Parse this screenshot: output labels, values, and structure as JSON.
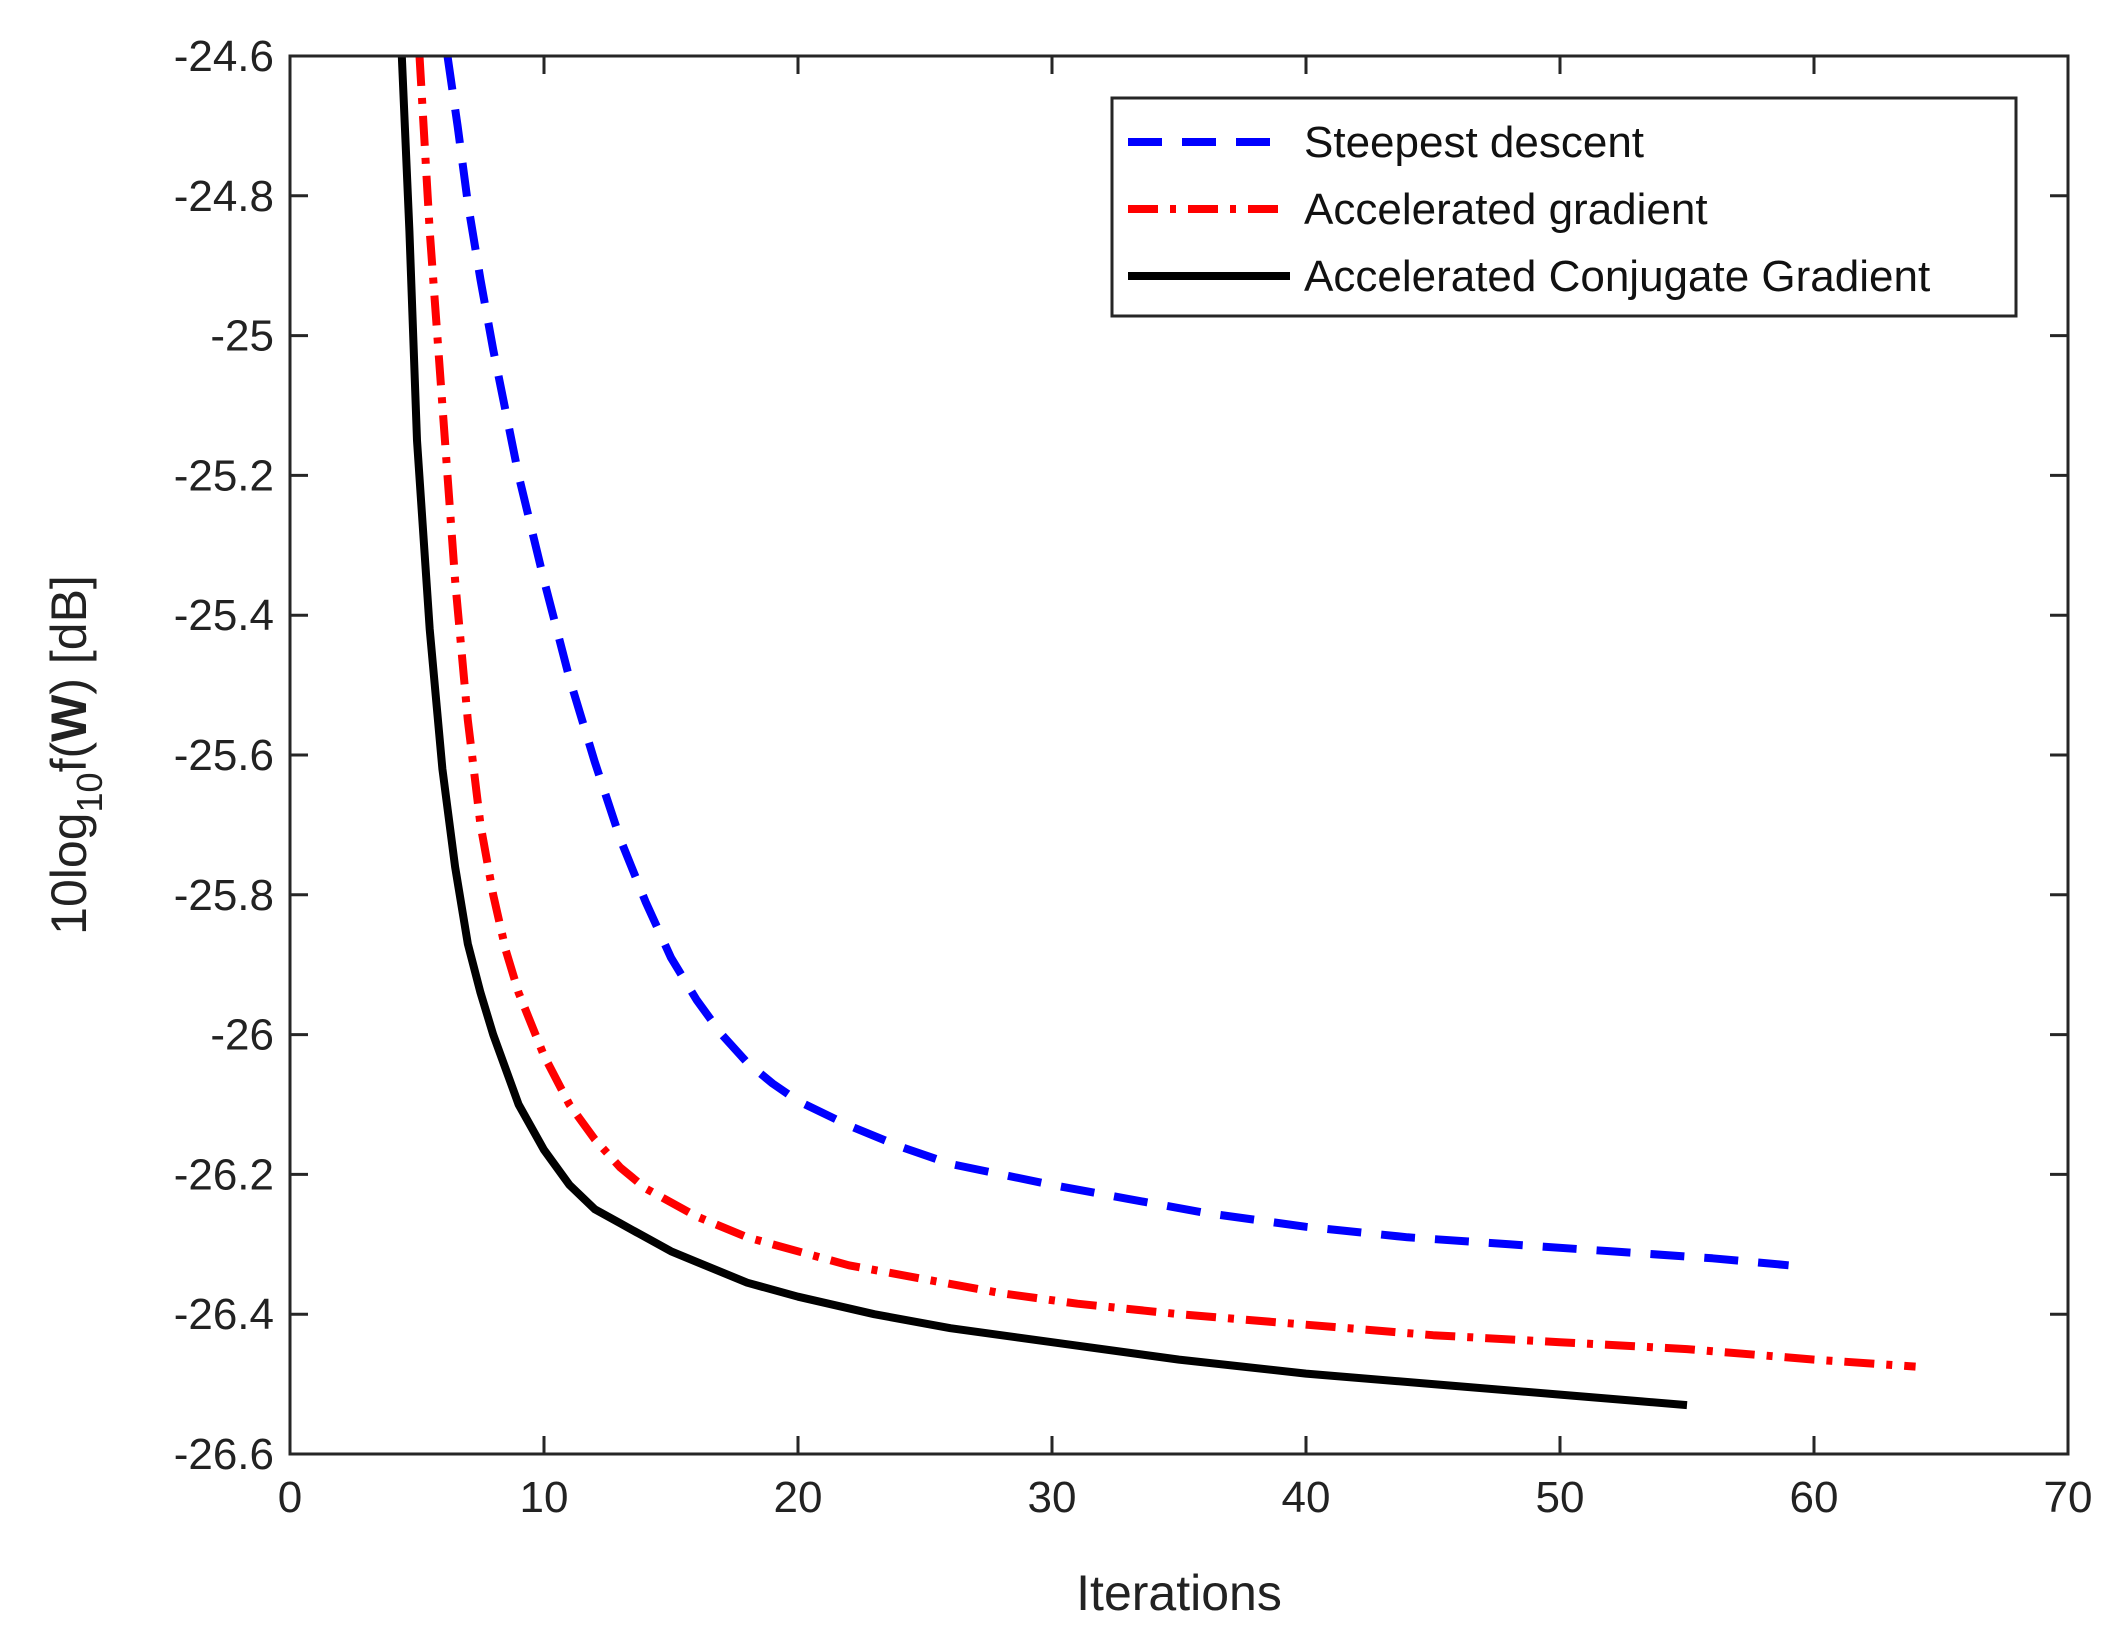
{
  "chart_data": {
    "type": "line",
    "xlabel": "Iterations",
    "ylabel": {
      "prefix": "10log",
      "subscript": "10",
      "func": "f(",
      "bold": "W",
      "suffix": ") [dB]"
    },
    "xlim": [
      0,
      70
    ],
    "ylim": [
      -26.6,
      -24.6
    ],
    "xticks": [
      0,
      10,
      20,
      30,
      40,
      50,
      60,
      70
    ],
    "xtick_labels": [
      "0",
      "10",
      "20",
      "30",
      "40",
      "50",
      "60",
      "70"
    ],
    "yticks": [
      -24.6,
      -24.8,
      -25,
      -25.2,
      -25.4,
      -25.6,
      -25.8,
      -26,
      -26.2,
      -26.4,
      -26.6
    ],
    "ytick_labels": [
      "-24.6",
      "-24.8",
      "-25",
      "-25.2",
      "-25.4",
      "-25.6",
      "-25.8",
      "-26",
      "-26.2",
      "-26.4",
      "-26.6"
    ],
    "grid": false,
    "legend_position": "top-right",
    "series": [
      {
        "name": "Steepest descent",
        "color": "#0000ff",
        "style": "dashed",
        "x": [
          6.2,
          6.6,
          7,
          7.5,
          8,
          8.5,
          9,
          10,
          11,
          12,
          13,
          14,
          15,
          16,
          17,
          18,
          19,
          20,
          22,
          24,
          26,
          28,
          30,
          33,
          36,
          40,
          44,
          48,
          52,
          56,
          59
        ],
        "y": [
          -24.6,
          -24.7,
          -24.81,
          -24.92,
          -25.02,
          -25.11,
          -25.2,
          -25.35,
          -25.49,
          -25.61,
          -25.72,
          -25.81,
          -25.89,
          -25.95,
          -26.0,
          -26.04,
          -26.07,
          -26.095,
          -26.13,
          -26.16,
          -26.185,
          -26.2,
          -26.215,
          -26.235,
          -26.255,
          -26.275,
          -26.29,
          -26.3,
          -26.31,
          -26.32,
          -26.33
        ]
      },
      {
        "name": "Accelerated gradient",
        "color": "#ff0000",
        "style": "dashdot",
        "x": [
          5.1,
          5.5,
          6,
          6.5,
          7,
          7.5,
          8,
          8.5,
          9,
          10,
          11,
          12,
          13,
          14,
          15,
          16,
          18,
          20,
          22,
          25,
          28,
          31,
          35,
          40,
          45,
          50,
          55,
          60,
          64
        ],
        "y": [
          -24.6,
          -24.85,
          -25.1,
          -25.35,
          -25.55,
          -25.7,
          -25.8,
          -25.88,
          -25.94,
          -26.03,
          -26.1,
          -26.15,
          -26.19,
          -26.22,
          -26.24,
          -26.26,
          -26.29,
          -26.31,
          -26.33,
          -26.35,
          -26.37,
          -26.385,
          -26.4,
          -26.415,
          -26.43,
          -26.44,
          -26.45,
          -26.465,
          -26.475
        ]
      },
      {
        "name": "Accelerated Conjugate Gradient",
        "color": "#000000",
        "style": "solid",
        "x": [
          4.4,
          4.7,
          5,
          5.5,
          6,
          6.5,
          7,
          7.5,
          8,
          9,
          10,
          11,
          12,
          13,
          14,
          15,
          16,
          18,
          20,
          23,
          26,
          30,
          35,
          40,
          45,
          50,
          55
        ],
        "y": [
          -24.6,
          -24.85,
          -25.15,
          -25.42,
          -25.62,
          -25.76,
          -25.87,
          -25.94,
          -26.0,
          -26.1,
          -26.165,
          -26.215,
          -26.25,
          -26.27,
          -26.29,
          -26.31,
          -26.325,
          -26.355,
          -26.375,
          -26.4,
          -26.42,
          -26.44,
          -26.465,
          -26.485,
          -26.5,
          -26.515,
          -26.53
        ]
      }
    ]
  }
}
